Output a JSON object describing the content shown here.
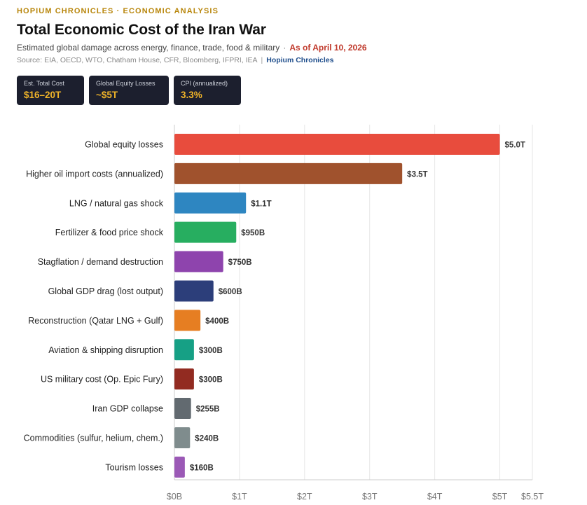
{
  "header": {
    "kicker": "HOPIUM CHRONICLES · ECONOMIC ANALYSIS",
    "title": "Total Economic Cost of the Iran War",
    "subtitle": "Estimated global damage across energy, finance, trade, food & military",
    "subtitle_sep": "·",
    "as_of": "As of April 10, 2026",
    "source": "Source: EIA, OECD, WTO, Chatham House, CFR, Bloomberg, IFPRI, IEA",
    "source_sep": "|",
    "brand": "Hopium Chronicles"
  },
  "cards": [
    {
      "label": "Est. Total Cost",
      "value": "$16–20T"
    },
    {
      "label": "Global Equity Losses",
      "value": "~$5T"
    },
    {
      "label": "CPI (annualized)",
      "value": "3.3%"
    }
  ],
  "colors": {
    "kicker": "#b8860b",
    "as_of": "#c0392b",
    "brand": "#1f4e8c",
    "card_bg": "#1c1f2e",
    "card_value": "#f0b429",
    "grid": "#e6e6e6",
    "axis": "#cccccc"
  },
  "chart_data": {
    "type": "bar",
    "orientation": "horizontal",
    "title": "Total Economic Cost of the Iran War",
    "unit": "trillion USD",
    "xlim": [
      0,
      5.5
    ],
    "grid": true,
    "legend": "none",
    "ticks": [
      {
        "value": 0,
        "label": "$0B"
      },
      {
        "value": 1,
        "label": "$1T"
      },
      {
        "value": 2,
        "label": "$2T"
      },
      {
        "value": 3,
        "label": "$3T"
      },
      {
        "value": 4,
        "label": "$4T"
      },
      {
        "value": 5,
        "label": "$5T"
      },
      {
        "value": 5.5,
        "label": "$5.5T"
      }
    ],
    "bars": [
      {
        "category": "Global equity losses",
        "value": 5.0,
        "label": "$5.0T",
        "color": "#e84c3d"
      },
      {
        "category": "Higher oil import costs (annualized)",
        "value": 3.5,
        "label": "$3.5T",
        "color": "#a0522d"
      },
      {
        "category": "LNG / natural gas shock",
        "value": 1.1,
        "label": "$1.1T",
        "color": "#2e86c1"
      },
      {
        "category": "Fertilizer & food price shock",
        "value": 0.95,
        "label": "$950B",
        "color": "#27ae60"
      },
      {
        "category": "Stagflation / demand destruction",
        "value": 0.75,
        "label": "$750B",
        "color": "#8e44ad"
      },
      {
        "category": "Global GDP drag (lost output)",
        "value": 0.6,
        "label": "$600B",
        "color": "#2c3e7a"
      },
      {
        "category": "Reconstruction (Qatar LNG + Gulf)",
        "value": 0.4,
        "label": "$400B",
        "color": "#e67e22"
      },
      {
        "category": "Aviation & shipping disruption",
        "value": 0.3,
        "label": "$300B",
        "color": "#16a085"
      },
      {
        "category": "US military cost (Op. Epic Fury)",
        "value": 0.3,
        "label": "$300B",
        "color": "#922b21"
      },
      {
        "category": "Iran GDP collapse",
        "value": 0.255,
        "label": "$255B",
        "color": "#626a70"
      },
      {
        "category": "Commodities (sulfur, helium, chem.)",
        "value": 0.24,
        "label": "$240B",
        "color": "#7f8c8d"
      },
      {
        "category": "Tourism losses",
        "value": 0.16,
        "label": "$160B",
        "color": "#9b59b6"
      }
    ]
  }
}
